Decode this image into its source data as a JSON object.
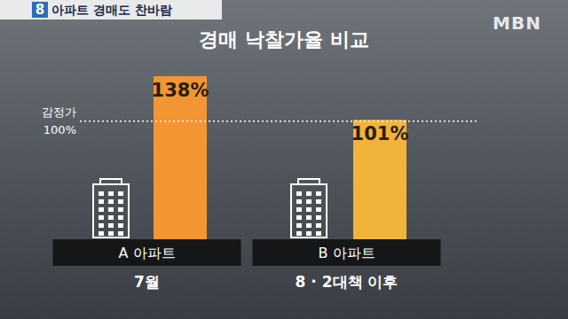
{
  "header": {
    "number": "8",
    "text": "아파트 경매도 찬바람",
    "logo": "MBN"
  },
  "chart_data": {
    "type": "bar",
    "title": "경매 낙찰가율 비교",
    "categories": [
      "A 아파트",
      "B 아파트"
    ],
    "periods": [
      "7월",
      "8 · 2대책 이후"
    ],
    "values": [
      138,
      101
    ],
    "value_labels": [
      "138%",
      "101%"
    ],
    "colors": [
      "#f39533",
      "#f2b33a"
    ],
    "data_labels": true,
    "reference_line": {
      "value": 100,
      "label": [
        "감정가",
        "100%"
      ]
    },
    "ylim": [
      0,
      150
    ],
    "yticks": [
      0,
      150
    ],
    "grid": false,
    "tick_labels": "x"
  }
}
